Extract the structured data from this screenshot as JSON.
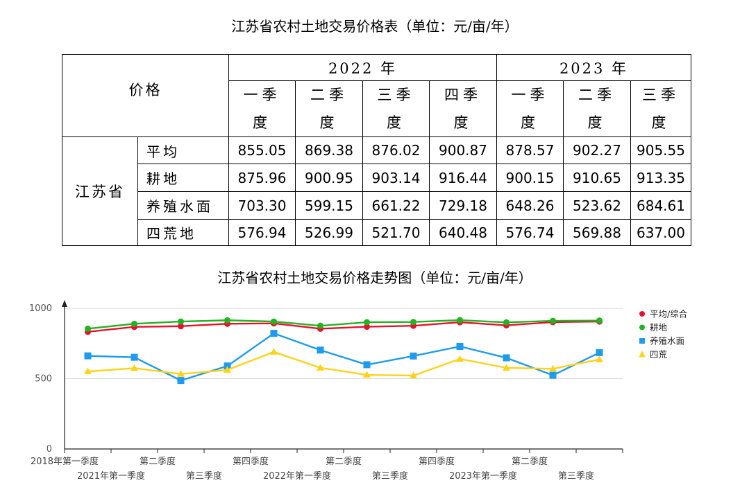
{
  "table": {
    "title": "江苏省农村土地交易价格表（单位：元/亩/年）",
    "corner_label": "价格",
    "province": "江苏省",
    "years": [
      {
        "label": "2022 年",
        "span": 4
      },
      {
        "label": "2023 年",
        "span": 3
      }
    ],
    "quarters": [
      {
        "top": "一季",
        "bottom": "度"
      },
      {
        "top": "二季",
        "bottom": "度"
      },
      {
        "top": "三季",
        "bottom": "度"
      },
      {
        "top": "四季",
        "bottom": "度"
      },
      {
        "top": "一季",
        "bottom": "度"
      },
      {
        "top": "二季",
        "bottom": "度"
      },
      {
        "top": "三季",
        "bottom": "度"
      }
    ],
    "rows": [
      {
        "label": "平均",
        "values": [
          "855.05",
          "869.38",
          "876.02",
          "900.87",
          "878.57",
          "902.27",
          "905.55"
        ]
      },
      {
        "label": "耕地",
        "values": [
          "875.96",
          "900.95",
          "903.14",
          "916.44",
          "900.15",
          "910.65",
          "913.35"
        ]
      },
      {
        "label": "养殖水面",
        "values": [
          "703.30",
          "599.15",
          "661.22",
          "729.18",
          "648.26",
          "523.62",
          "684.61"
        ]
      },
      {
        "label": "四荒地",
        "values": [
          "576.94",
          "526.99",
          "521.70",
          "640.48",
          "576.74",
          "569.88",
          "637.00"
        ]
      }
    ]
  },
  "chart_data": {
    "type": "line",
    "title": "江苏省农村土地交易价格走势图（单位：元/亩/年）",
    "xlabel": "",
    "ylabel": "",
    "ylim": [
      0,
      1000
    ],
    "yticks": [
      0,
      500,
      1000
    ],
    "grid": true,
    "legend_position": "right",
    "categories": [
      "2018年第一季度",
      "2021年第一季度",
      "第二季度",
      "第三季度",
      "第四季度",
      "2022年第一季度",
      "第二季度",
      "第三季度",
      "第四季度",
      "2023年第一季度",
      "第二季度",
      "第三季度"
    ],
    "series": [
      {
        "name": "平均/综合",
        "color": "#e8112d",
        "marker": "circle",
        "values": [
          833,
          868,
          873,
          890,
          893,
          855,
          869,
          876,
          901,
          879,
          902,
          906
        ]
      },
      {
        "name": "耕地",
        "color": "#22b322",
        "marker": "circle",
        "values": [
          855,
          890,
          906,
          915,
          906,
          876,
          901,
          903,
          916,
          900,
          911,
          913
        ]
      },
      {
        "name": "养殖水面",
        "color": "#1e9bec",
        "marker": "square",
        "values": [
          662,
          652,
          487,
          590,
          822,
          703,
          599,
          661,
          729,
          648,
          524,
          685
        ]
      },
      {
        "name": "四荒",
        "color": "#ffd21a",
        "marker": "triangle",
        "values": [
          551,
          575,
          533,
          562,
          690,
          577,
          527,
          522,
          640,
          577,
          570,
          637
        ]
      }
    ]
  }
}
